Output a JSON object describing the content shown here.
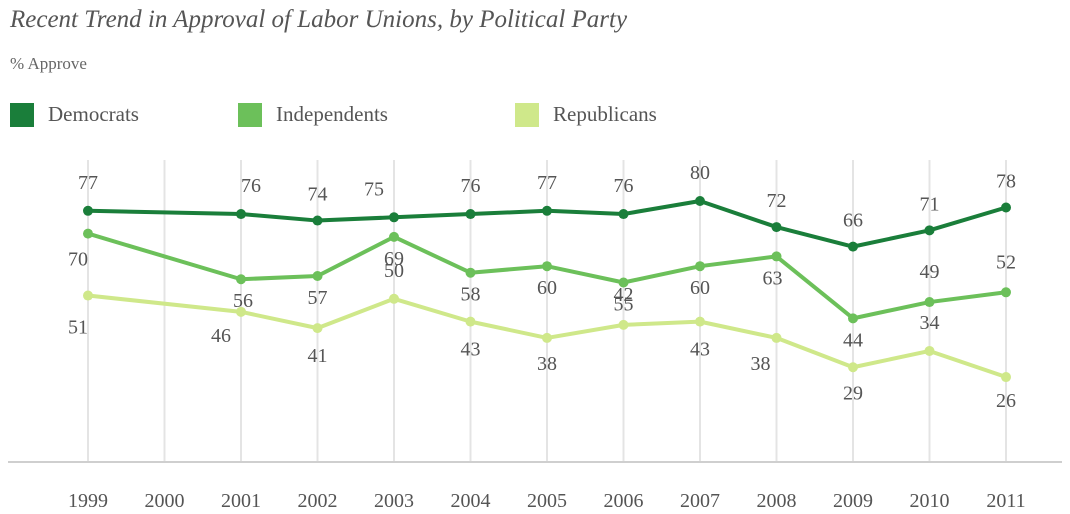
{
  "title": "Recent Trend in Approval of Labor Unions, by Political Party",
  "subtitle": "% Approve",
  "legend": [
    {
      "label": "Democrats",
      "color": "#1a7e3a"
    },
    {
      "label": "Independents",
      "color": "#6cc05a"
    },
    {
      "label": "Republicans",
      "color": "#cfe88a"
    }
  ],
  "chart_data": {
    "type": "line",
    "x": [
      "1999",
      "2000",
      "2001",
      "2002",
      "2003",
      "2004",
      "2005",
      "2006",
      "2007",
      "2008",
      "2009",
      "2010",
      "2011"
    ],
    "series": [
      {
        "name": "Democrats",
        "color": "#1a7e3a",
        "values": [
          77,
          null,
          76,
          74,
          75,
          76,
          77,
          76,
          80,
          72,
          66,
          71,
          78
        ]
      },
      {
        "name": "Independents",
        "color": "#6cc05a",
        "values": [
          70,
          null,
          56,
          57,
          69,
          58,
          60,
          55,
          60,
          63,
          44,
          49,
          52
        ]
      },
      {
        "name": "Republicans",
        "color": "#cfe88a",
        "values": [
          51,
          null,
          46,
          41,
          50,
          43,
          38,
          42,
          43,
          38,
          29,
          34,
          26
        ]
      }
    ],
    "ylim": [
      0,
      100
    ],
    "grid": "vertical",
    "legend_position": "top-left"
  }
}
